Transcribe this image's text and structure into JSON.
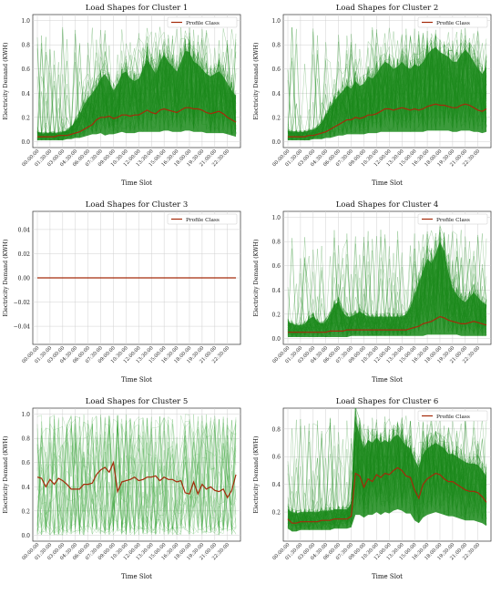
{
  "colors": {
    "band": "#1a8a1a",
    "band_dark": "#0a6e0a",
    "profile": "#a52a0a",
    "grid": "#d0d0d0",
    "axis": "#333333"
  },
  "time_labels": [
    "00:00:00",
    "01:30:00",
    "03:00:00",
    "04:30:00",
    "06:00:00",
    "07:30:00",
    "09:00:00",
    "10:30:00",
    "12:00:00",
    "13:30:00",
    "15:00:00",
    "16:30:00",
    "18:00:00",
    "19:30:00",
    "21:00:00",
    "22:30:00"
  ],
  "chart_data": [
    {
      "type": "line",
      "title": "Load Shapes for Cluster 1",
      "xlabel": "Time Slot",
      "ylabel": "Electricity Demand (KWH)",
      "legend": "Profile Class",
      "ylim": [
        -0.05,
        1.05
      ],
      "yticks": [
        "0.0",
        "0.2",
        "0.4",
        "0.6",
        "0.8",
        "1.0"
      ],
      "ytick_values": [
        0,
        0.2,
        0.4,
        0.6,
        0.8,
        1.0
      ],
      "profile": [
        0.04,
        0.04,
        0.04,
        0.04,
        0.04,
        0.05,
        0.05,
        0.05,
        0.06,
        0.07,
        0.08,
        0.1,
        0.12,
        0.14,
        0.18,
        0.2,
        0.2,
        0.21,
        0.19,
        0.2,
        0.22,
        0.22,
        0.21,
        0.22,
        0.22,
        0.24,
        0.26,
        0.24,
        0.23,
        0.26,
        0.27,
        0.26,
        0.25,
        0.24,
        0.26,
        0.28,
        0.28,
        0.27,
        0.27,
        0.26,
        0.24,
        0.23,
        0.24,
        0.25,
        0.23,
        0.2,
        0.18,
        0.16
      ],
      "band_high": [
        0.08,
        0.07,
        0.07,
        0.07,
        0.07,
        0.07,
        0.08,
        0.09,
        0.12,
        0.17,
        0.22,
        0.3,
        0.36,
        0.4,
        0.45,
        0.52,
        0.56,
        0.5,
        0.42,
        0.48,
        0.56,
        0.58,
        0.52,
        0.5,
        0.52,
        0.6,
        0.68,
        0.62,
        0.56,
        0.66,
        0.72,
        0.66,
        0.62,
        0.58,
        0.66,
        0.75,
        0.74,
        0.66,
        0.64,
        0.6,
        0.56,
        0.54,
        0.56,
        0.58,
        0.54,
        0.48,
        0.42,
        0.38
      ],
      "band_low": [
        0.01,
        0.01,
        0.01,
        0.01,
        0.01,
        0.01,
        0.01,
        0.02,
        0.02,
        0.03,
        0.03,
        0.04,
        0.05,
        0.06,
        0.06,
        0.07,
        0.05,
        0.06,
        0.06,
        0.07,
        0.08,
        0.07,
        0.07,
        0.07,
        0.08,
        0.08,
        0.08,
        0.08,
        0.08,
        0.08,
        0.09,
        0.09,
        0.08,
        0.08,
        0.08,
        0.09,
        0.09,
        0.08,
        0.08,
        0.08,
        0.07,
        0.07,
        0.07,
        0.07,
        0.07,
        0.06,
        0.05,
        0.04
      ],
      "spikes": 0.95
    },
    {
      "type": "line",
      "title": "Load Shapes for Cluster 2",
      "xlabel": "Time Slot",
      "ylabel": "Electricity Demand (KWH)",
      "legend": "Profile Class",
      "ylim": [
        -0.05,
        1.05
      ],
      "yticks": [
        "0.0",
        "0.2",
        "0.4",
        "0.6",
        "0.8",
        "1.0"
      ],
      "ytick_values": [
        0,
        0.2,
        0.4,
        0.6,
        0.8,
        1.0
      ],
      "profile": [
        0.04,
        0.04,
        0.04,
        0.04,
        0.04,
        0.05,
        0.05,
        0.06,
        0.07,
        0.08,
        0.1,
        0.12,
        0.14,
        0.16,
        0.18,
        0.18,
        0.2,
        0.19,
        0.2,
        0.22,
        0.22,
        0.23,
        0.25,
        0.27,
        0.27,
        0.26,
        0.27,
        0.28,
        0.27,
        0.26,
        0.27,
        0.26,
        0.27,
        0.29,
        0.3,
        0.31,
        0.3,
        0.3,
        0.29,
        0.28,
        0.28,
        0.3,
        0.31,
        0.3,
        0.28,
        0.26,
        0.25,
        0.27
      ],
      "band_high": [
        0.09,
        0.08,
        0.08,
        0.08,
        0.08,
        0.09,
        0.1,
        0.12,
        0.16,
        0.22,
        0.28,
        0.34,
        0.38,
        0.42,
        0.46,
        0.44,
        0.5,
        0.46,
        0.48,
        0.54,
        0.52,
        0.56,
        0.62,
        0.66,
        0.64,
        0.6,
        0.62,
        0.66,
        0.62,
        0.6,
        0.64,
        0.62,
        0.66,
        0.72,
        0.76,
        0.78,
        0.74,
        0.72,
        0.7,
        0.66,
        0.66,
        0.72,
        0.76,
        0.72,
        0.66,
        0.6,
        0.56,
        0.62
      ],
      "band_low": [
        0.01,
        0.01,
        0.01,
        0.01,
        0.01,
        0.01,
        0.02,
        0.02,
        0.02,
        0.03,
        0.03,
        0.04,
        0.05,
        0.05,
        0.06,
        0.06,
        0.06,
        0.06,
        0.06,
        0.07,
        0.07,
        0.07,
        0.08,
        0.08,
        0.08,
        0.08,
        0.08,
        0.08,
        0.08,
        0.08,
        0.08,
        0.08,
        0.08,
        0.09,
        0.09,
        0.09,
        0.09,
        0.09,
        0.09,
        0.08,
        0.08,
        0.09,
        0.09,
        0.09,
        0.08,
        0.08,
        0.07,
        0.08
      ],
      "spikes": 0.95
    },
    {
      "type": "line",
      "title": "Load Shapes for Cluster 3",
      "xlabel": "Time Slot",
      "ylabel": "Electricity Demand (KWH)",
      "legend": "Profile Class",
      "ylim": [
        -0.055,
        0.055
      ],
      "yticks": [
        "−0.04",
        "−0.02",
        "0.00",
        "0.02",
        "0.04"
      ],
      "ytick_values": [
        -0.04,
        -0.02,
        0,
        0.02,
        0.04
      ],
      "profile": [
        0,
        0,
        0,
        0,
        0,
        0,
        0,
        0,
        0,
        0,
        0,
        0,
        0,
        0,
        0,
        0,
        0,
        0,
        0,
        0,
        0,
        0,
        0,
        0,
        0,
        0,
        0,
        0,
        0,
        0,
        0,
        0,
        0,
        0,
        0,
        0,
        0,
        0,
        0,
        0,
        0,
        0,
        0,
        0,
        0,
        0,
        0,
        0
      ],
      "band_high": [],
      "band_low": [],
      "spikes": 0
    },
    {
      "type": "line",
      "title": "Load Shapes for Cluster 4",
      "xlabel": "Time Slot",
      "ylabel": "Electricity Demand (KWH)",
      "legend": "Profile Class",
      "ylim": [
        -0.05,
        1.05
      ],
      "yticks": [
        "0.0",
        "0.2",
        "0.4",
        "0.6",
        "0.8",
        "1.0"
      ],
      "ytick_values": [
        0,
        0.2,
        0.4,
        0.6,
        0.8,
        1.0
      ],
      "profile": [
        0.05,
        0.05,
        0.05,
        0.05,
        0.05,
        0.05,
        0.05,
        0.05,
        0.05,
        0.05,
        0.06,
        0.06,
        0.06,
        0.06,
        0.07,
        0.07,
        0.07,
        0.07,
        0.07,
        0.07,
        0.07,
        0.07,
        0.07,
        0.07,
        0.07,
        0.07,
        0.07,
        0.07,
        0.07,
        0.08,
        0.09,
        0.1,
        0.12,
        0.13,
        0.14,
        0.16,
        0.18,
        0.17,
        0.15,
        0.14,
        0.13,
        0.12,
        0.12,
        0.13,
        0.14,
        0.13,
        0.12,
        0.11
      ],
      "band_high": [
        0.14,
        0.12,
        0.11,
        0.11,
        0.12,
        0.16,
        0.18,
        0.14,
        0.12,
        0.14,
        0.2,
        0.28,
        0.3,
        0.22,
        0.18,
        0.18,
        0.2,
        0.22,
        0.2,
        0.18,
        0.18,
        0.18,
        0.18,
        0.18,
        0.18,
        0.18,
        0.18,
        0.18,
        0.2,
        0.26,
        0.36,
        0.46,
        0.56,
        0.66,
        0.62,
        0.7,
        0.8,
        0.72,
        0.54,
        0.42,
        0.36,
        0.32,
        0.3,
        0.34,
        0.38,
        0.34,
        0.3,
        0.28
      ],
      "band_low": [
        0.01,
        0.01,
        0.01,
        0.01,
        0.01,
        0.01,
        0.01,
        0.01,
        0.01,
        0.01,
        0.01,
        0.01,
        0.01,
        0.01,
        0.01,
        0.02,
        0.02,
        0.02,
        0.02,
        0.02,
        0.02,
        0.02,
        0.02,
        0.02,
        0.02,
        0.02,
        0.02,
        0.02,
        0.02,
        0.02,
        0.02,
        0.02,
        0.02,
        0.03,
        0.03,
        0.03,
        0.03,
        0.03,
        0.03,
        0.03,
        0.03,
        0.02,
        0.02,
        0.02,
        0.02,
        0.02,
        0.02,
        0.02
      ],
      "spikes": 0.9
    },
    {
      "type": "line",
      "title": "Load Shapes for Cluster 5",
      "xlabel": "Time Slot",
      "ylabel": "Electricity Demand (KWH)",
      "legend": "",
      "ylim": [
        -0.05,
        1.05
      ],
      "yticks": [
        "0.0",
        "0.2",
        "0.4",
        "0.6",
        "0.8",
        "1.0"
      ],
      "ytick_values": [
        0,
        0.2,
        0.4,
        0.6,
        0.8,
        1.0
      ],
      "profile": [
        0.48,
        0.47,
        0.4,
        0.46,
        0.42,
        0.47,
        0.45,
        0.42,
        0.38,
        0.38,
        0.38,
        0.42,
        0.42,
        0.43,
        0.5,
        0.54,
        0.56,
        0.52,
        0.6,
        0.36,
        0.44,
        0.45,
        0.46,
        0.48,
        0.45,
        0.46,
        0.48,
        0.48,
        0.49,
        0.45,
        0.48,
        0.46,
        0.46,
        0.44,
        0.45,
        0.35,
        0.34,
        0.44,
        0.34,
        0.42,
        0.38,
        0.4,
        0.37,
        0.36,
        0.38,
        0.31,
        0.37,
        0.5
      ],
      "band_high": [],
      "band_low": [],
      "spikes": 1.0
    },
    {
      "type": "line",
      "title": "Load Shapes for Cluster 6",
      "xlabel": "Time Slot",
      "ylabel": "Electricity Demand (KWH)",
      "legend": "Profile Class",
      "ylim": [
        -0.01,
        0.95
      ],
      "yticks": [
        "0.2",
        "0.4",
        "0.6",
        "0.8"
      ],
      "ytick_values": [
        0.2,
        0.4,
        0.6,
        0.8
      ],
      "profile": [
        0.15,
        0.12,
        0.12,
        0.13,
        0.13,
        0.13,
        0.13,
        0.13,
        0.14,
        0.14,
        0.14,
        0.15,
        0.15,
        0.15,
        0.15,
        0.17,
        0.48,
        0.46,
        0.38,
        0.44,
        0.42,
        0.47,
        0.45,
        0.48,
        0.47,
        0.5,
        0.52,
        0.5,
        0.46,
        0.45,
        0.36,
        0.3,
        0.4,
        0.44,
        0.46,
        0.48,
        0.47,
        0.44,
        0.42,
        0.42,
        0.4,
        0.38,
        0.36,
        0.35,
        0.35,
        0.34,
        0.31,
        0.27
      ],
      "band_high": [
        0.22,
        0.2,
        0.19,
        0.2,
        0.2,
        0.2,
        0.2,
        0.2,
        0.21,
        0.21,
        0.21,
        0.22,
        0.22,
        0.22,
        0.22,
        0.26,
        0.86,
        0.76,
        0.66,
        0.72,
        0.7,
        0.74,
        0.7,
        0.72,
        0.7,
        0.74,
        0.76,
        0.72,
        0.68,
        0.66,
        0.58,
        0.52,
        0.62,
        0.66,
        0.68,
        0.7,
        0.68,
        0.66,
        0.62,
        0.62,
        0.6,
        0.58,
        0.56,
        0.55,
        0.55,
        0.54,
        0.5,
        0.46
      ],
      "band_low": [
        0.08,
        0.06,
        0.06,
        0.07,
        0.07,
        0.07,
        0.07,
        0.07,
        0.07,
        0.07,
        0.07,
        0.08,
        0.08,
        0.08,
        0.08,
        0.09,
        0.18,
        0.18,
        0.16,
        0.18,
        0.18,
        0.2,
        0.18,
        0.2,
        0.19,
        0.21,
        0.22,
        0.21,
        0.19,
        0.19,
        0.14,
        0.12,
        0.16,
        0.18,
        0.19,
        0.2,
        0.19,
        0.18,
        0.17,
        0.17,
        0.16,
        0.15,
        0.14,
        0.14,
        0.14,
        0.13,
        0.12,
        0.1
      ],
      "spikes": 0.9
    }
  ]
}
